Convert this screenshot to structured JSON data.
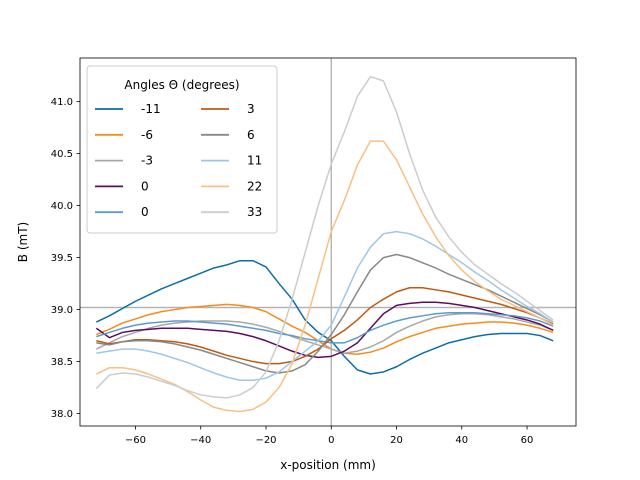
{
  "chart_data": {
    "type": "line",
    "title": "",
    "xlabel": "x-position (mm)",
    "ylabel": "B (mT)",
    "xlim": [
      -77,
      75
    ],
    "ylim": [
      37.88,
      41.42
    ],
    "xticks": [
      -60,
      -40,
      -20,
      0,
      20,
      40,
      60
    ],
    "xtick_labels": [
      "−60",
      "−40",
      "−20",
      "0",
      "20",
      "40",
      "60"
    ],
    "yticks": [
      38.0,
      38.5,
      39.0,
      39.5,
      40.0,
      40.5,
      41.0
    ],
    "ytick_labels": [
      "38.0",
      "38.5",
      "39.0",
      "39.5",
      "40.0",
      "40.5",
      "41.0"
    ],
    "grid": false,
    "reference_lines": {
      "x": 0,
      "y": 39.02,
      "color": "#b3b3b3"
    },
    "legend": {
      "title": "Angles Θ (degrees)",
      "placement": "top-left",
      "columns": 2
    },
    "x": [
      -72,
      -68,
      -64,
      -60,
      -56,
      -52,
      -48,
      -44,
      -40,
      -36,
      -32,
      -28,
      -24,
      -20,
      -16,
      -12,
      -8,
      -4,
      0,
      4,
      8,
      12,
      16,
      20,
      24,
      28,
      32,
      36,
      40,
      44,
      48,
      52,
      56,
      60,
      64,
      68
    ],
    "series": [
      {
        "name": "-11",
        "color": "#0a6ea8",
        "values": [
          38.88,
          38.94,
          39.01,
          39.08,
          39.14,
          39.2,
          39.25,
          39.3,
          39.35,
          39.4,
          39.43,
          39.47,
          39.47,
          39.41,
          39.25,
          39.1,
          38.9,
          38.78,
          38.7,
          38.55,
          38.42,
          38.38,
          38.4,
          38.45,
          38.52,
          38.58,
          38.63,
          38.68,
          38.71,
          38.74,
          38.76,
          38.77,
          38.77,
          38.77,
          38.75,
          38.7
        ]
      },
      {
        "name": "-6",
        "color": "#f58c1f",
        "values": [
          38.76,
          38.81,
          38.87,
          38.91,
          38.95,
          38.98,
          39.0,
          39.02,
          39.03,
          39.04,
          39.05,
          39.04,
          39.02,
          38.98,
          38.91,
          38.84,
          38.78,
          38.7,
          38.62,
          38.58,
          38.57,
          38.59,
          38.63,
          38.69,
          38.74,
          38.78,
          38.82,
          38.84,
          38.86,
          38.87,
          38.88,
          38.88,
          38.87,
          38.85,
          38.82,
          38.78
        ]
      },
      {
        "name": "-3",
        "color": "#a8a8a8",
        "values": [
          38.62,
          38.68,
          38.74,
          38.78,
          38.82,
          38.85,
          38.87,
          38.88,
          38.89,
          38.89,
          38.89,
          38.88,
          38.86,
          38.83,
          38.79,
          38.74,
          38.7,
          38.66,
          38.62,
          38.58,
          38.6,
          38.64,
          38.7,
          38.78,
          38.84,
          38.89,
          38.93,
          38.95,
          38.96,
          38.96,
          38.95,
          38.93,
          38.91,
          38.88,
          38.85,
          38.8
        ]
      },
      {
        "name": "0",
        "color": "#5c0d5c",
        "values": [
          38.82,
          38.73,
          38.78,
          38.8,
          38.81,
          38.82,
          38.82,
          38.82,
          38.81,
          38.8,
          38.79,
          38.77,
          38.74,
          38.7,
          38.65,
          38.6,
          38.56,
          38.54,
          38.55,
          38.6,
          38.68,
          38.82,
          38.96,
          39.04,
          39.06,
          39.07,
          39.07,
          39.06,
          39.04,
          39.02,
          38.99,
          38.96,
          38.93,
          38.9,
          38.86,
          38.8
        ]
      },
      {
        "name": "0",
        "color": "#5b9bd0",
        "values": [
          38.74,
          38.78,
          38.82,
          38.85,
          38.87,
          38.88,
          38.89,
          38.89,
          38.88,
          38.87,
          38.86,
          38.84,
          38.82,
          38.8,
          38.77,
          38.75,
          38.72,
          38.7,
          38.68,
          38.68,
          38.73,
          38.8,
          38.85,
          38.89,
          38.92,
          38.94,
          38.96,
          38.97,
          38.97,
          38.97,
          38.96,
          38.95,
          38.94,
          38.92,
          38.89,
          38.84
        ]
      },
      {
        "name": "3",
        "color": "#c05a12",
        "values": [
          38.7,
          38.67,
          38.69,
          38.71,
          38.71,
          38.7,
          38.69,
          38.67,
          38.64,
          38.6,
          38.56,
          38.53,
          38.5,
          38.48,
          38.48,
          38.5,
          38.55,
          38.62,
          38.72,
          38.8,
          38.9,
          39.02,
          39.1,
          39.17,
          39.21,
          39.21,
          39.19,
          39.17,
          39.14,
          39.11,
          39.08,
          39.05,
          39.01,
          38.97,
          38.92,
          38.86
        ]
      },
      {
        "name": "6",
        "color": "#888888",
        "values": [
          38.68,
          38.66,
          38.69,
          38.7,
          38.7,
          38.69,
          38.67,
          38.64,
          38.61,
          38.57,
          38.53,
          38.49,
          38.45,
          38.41,
          38.39,
          38.41,
          38.47,
          38.6,
          38.76,
          38.95,
          39.17,
          39.38,
          39.5,
          39.53,
          39.5,
          39.45,
          39.4,
          39.34,
          39.29,
          39.24,
          39.19,
          39.13,
          39.07,
          39.01,
          38.95,
          38.88
        ]
      },
      {
        "name": "11",
        "color": "#9ec7e6",
        "values": [
          38.58,
          38.6,
          38.62,
          38.62,
          38.6,
          38.57,
          38.53,
          38.49,
          38.44,
          38.39,
          38.35,
          38.32,
          38.32,
          38.34,
          38.4,
          38.5,
          38.6,
          38.7,
          38.85,
          39.12,
          39.4,
          39.6,
          39.73,
          39.75,
          39.73,
          39.68,
          39.61,
          39.53,
          39.45,
          39.36,
          39.28,
          39.19,
          39.11,
          39.03,
          38.96,
          38.88
        ]
      },
      {
        "name": "22",
        "color": "#f8c083",
        "values": [
          38.38,
          38.44,
          38.44,
          38.42,
          38.38,
          38.33,
          38.28,
          38.21,
          38.13,
          38.06,
          38.03,
          38.02,
          38.04,
          38.11,
          38.25,
          38.48,
          38.85,
          39.3,
          39.75,
          40.05,
          40.39,
          40.62,
          40.62,
          40.44,
          40.18,
          39.92,
          39.7,
          39.52,
          39.38,
          39.27,
          39.18,
          39.1,
          39.04,
          38.98,
          38.92,
          38.85
        ]
      },
      {
        "name": "33",
        "color": "#cccccc",
        "values": [
          38.24,
          38.37,
          38.39,
          38.38,
          38.35,
          38.31,
          38.27,
          38.22,
          38.18,
          38.16,
          38.15,
          38.18,
          38.25,
          38.4,
          38.7,
          39.1,
          39.55,
          40.0,
          40.4,
          40.71,
          41.05,
          41.24,
          41.2,
          40.9,
          40.5,
          40.15,
          39.89,
          39.7,
          39.55,
          39.43,
          39.34,
          39.25,
          39.17,
          39.08,
          38.99,
          38.9
        ]
      }
    ]
  }
}
